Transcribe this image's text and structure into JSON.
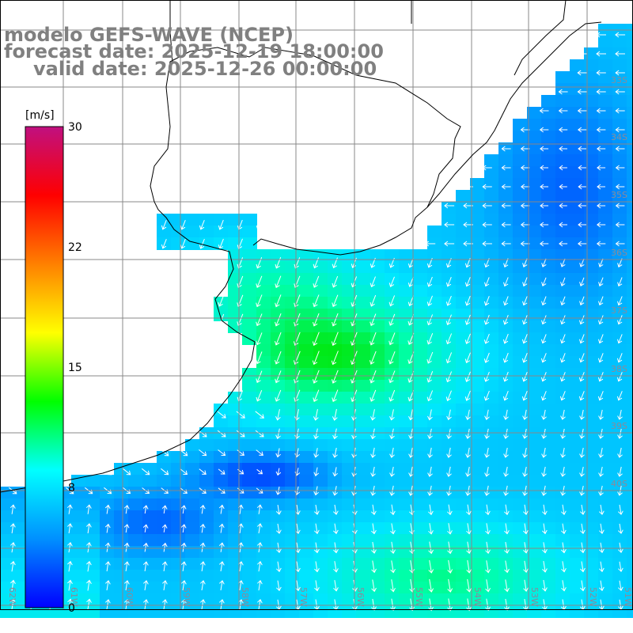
{
  "title": {
    "model": "modelo GEFS-WAVE (NCEP)",
    "forecast": "forecast date: 2025-12-19 18:00:00",
    "valid": "valid date: 2025-12-26 00:00:00"
  },
  "colorbar": {
    "unit": "[m/s]",
    "ticks": [
      "30",
      "22",
      "15",
      "8",
      "0"
    ],
    "tick_values": [
      30,
      22,
      15,
      8,
      0
    ],
    "stops": [
      "#0000ff",
      "#0090ff",
      "#00ffff",
      "#00ff00",
      "#ffff00",
      "#ff8000",
      "#ff0000",
      "#c01080"
    ]
  },
  "lat_labels": [
    "33S",
    "34S",
    "35S",
    "36S",
    "37S",
    "38S",
    "39S",
    "40S"
  ],
  "lon_labels": [
    "62W",
    "61W",
    "60W",
    "59W",
    "58W",
    "57W",
    "56W",
    "55W",
    "54W",
    "53W",
    "52W",
    "51W"
  ],
  "colors": {
    "land": "#ffffff",
    "coast": "#000000",
    "grid": "#808080",
    "arrow": "#ffffff"
  }
}
